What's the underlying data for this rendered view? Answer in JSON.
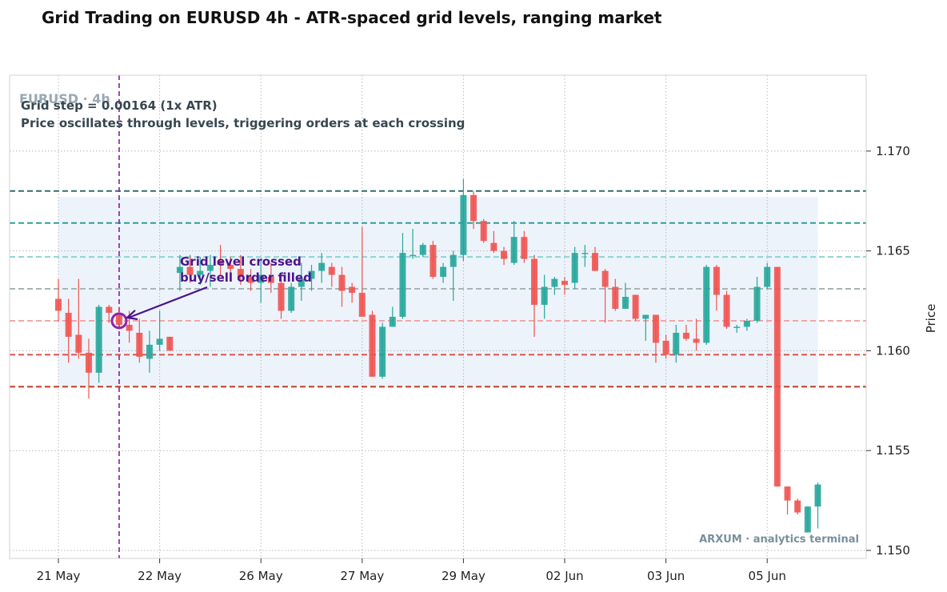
{
  "chart_data": {
    "type": "candlestick",
    "title": "Grid Trading on EURUSD 4h - ATR-spaced grid levels, ranging market",
    "watermark": "EURUSD · 4h",
    "notes": [
      "Grid step = 0.00164 (1x ATR)",
      "Price oscillates through levels, triggering orders at each crossing"
    ],
    "annotation": {
      "line1": "Grid level crossed",
      "line2": "buy/sell order filled",
      "color": "#4a148c"
    },
    "brand": "ARXUM · analytics terminal",
    "ylabel": "Price",
    "ylim": [
      1.1496,
      1.1738
    ],
    "yticks": [
      "1.150",
      "1.155",
      "1.160",
      "1.165",
      "1.170"
    ],
    "ytick_values": [
      1.15,
      1.155,
      1.16,
      1.165,
      1.17
    ],
    "xticks": [
      {
        "index": 0,
        "label": "21 May"
      },
      {
        "index": 10,
        "label": "22 May"
      },
      {
        "index": 20,
        "label": "26 May"
      },
      {
        "index": 30,
        "label": "27 May"
      },
      {
        "index": 40,
        "label": "29 May"
      },
      {
        "index": 50,
        "label": "02 Jun"
      },
      {
        "index": 60,
        "label": "03 Jun"
      },
      {
        "index": 70,
        "label": "05 Jun"
      }
    ],
    "crossing_index": 6,
    "crossing_price": 1.1615,
    "grid_band": [
      1.1582,
      1.1677
    ],
    "grid_levels": [
      {
        "price": 1.168,
        "color": "#2f6f6f"
      },
      {
        "price": 1.1664,
        "color": "#2aa198"
      },
      {
        "price": 1.1647,
        "color": "#8fd3d3"
      },
      {
        "price": 1.1631,
        "color": "#a7b5b5"
      },
      {
        "price": 1.1615,
        "color": "#f2a7a7"
      },
      {
        "price": 1.1598,
        "color": "#d9534f"
      },
      {
        "price": 1.1582,
        "color": "#c0392b"
      }
    ],
    "colors": {
      "up": "#26a69a",
      "down": "#ef5350",
      "crossing": "#8e24aa",
      "band": "#edf3fa",
      "grid": "#b8b8b8"
    },
    "candles": [
      {
        "o": 1.1626,
        "h": 1.1636,
        "l": 1.1615,
        "c": 1.162
      },
      {
        "o": 1.1619,
        "h": 1.1626,
        "l": 1.1594,
        "c": 1.1607
      },
      {
        "o": 1.1608,
        "h": 1.1636,
        "l": 1.1596,
        "c": 1.1599
      },
      {
        "o": 1.1599,
        "h": 1.1606,
        "l": 1.1576,
        "c": 1.1589
      },
      {
        "o": 1.1589,
        "h": 1.1623,
        "l": 1.1584,
        "c": 1.1622
      },
      {
        "o": 1.1622,
        "h": 1.1623,
        "l": 1.1614,
        "c": 1.1619
      },
      {
        "o": 1.1619,
        "h": 1.1622,
        "l": 1.1611,
        "c": 1.1613
      },
      {
        "o": 1.1613,
        "h": 1.162,
        "l": 1.1604,
        "c": 1.161
      },
      {
        "o": 1.1609,
        "h": 1.1616,
        "l": 1.1594,
        "c": 1.1597
      },
      {
        "o": 1.1596,
        "h": 1.161,
        "l": 1.1589,
        "c": 1.1603
      },
      {
        "o": 1.1603,
        "h": 1.162,
        "l": 1.16,
        "c": 1.1606
      },
      {
        "o": 1.1607,
        "h": 1.1607,
        "l": 1.16,
        "c": 1.16
      },
      {
        "o": 1.1639,
        "h": 1.1648,
        "l": 1.163,
        "c": 1.1642
      },
      {
        "o": 1.1642,
        "h": 1.1648,
        "l": 1.1634,
        "c": 1.1638
      },
      {
        "o": 1.1638,
        "h": 1.1647,
        "l": 1.1633,
        "c": 1.164
      },
      {
        "o": 1.164,
        "h": 1.1648,
        "l": 1.1632,
        "c": 1.1643
      },
      {
        "o": 1.1645,
        "h": 1.1653,
        "l": 1.1638,
        "c": 1.1643
      },
      {
        "o": 1.1643,
        "h": 1.1647,
        "l": 1.1636,
        "c": 1.1641
      },
      {
        "o": 1.1641,
        "h": 1.1648,
        "l": 1.1633,
        "c": 1.1637
      },
      {
        "o": 1.1637,
        "h": 1.1641,
        "l": 1.163,
        "c": 1.1634
      },
      {
        "o": 1.1634,
        "h": 1.1645,
        "l": 1.1624,
        "c": 1.1638
      },
      {
        "o": 1.1637,
        "h": 1.1644,
        "l": 1.1629,
        "c": 1.1634
      },
      {
        "o": 1.1634,
        "h": 1.1637,
        "l": 1.1616,
        "c": 1.162
      },
      {
        "o": 1.162,
        "h": 1.1634,
        "l": 1.1619,
        "c": 1.1632
      },
      {
        "o": 1.1632,
        "h": 1.1644,
        "l": 1.1625,
        "c": 1.1636
      },
      {
        "o": 1.1636,
        "h": 1.1643,
        "l": 1.163,
        "c": 1.164
      },
      {
        "o": 1.164,
        "h": 1.1649,
        "l": 1.1634,
        "c": 1.1644
      },
      {
        "o": 1.1642,
        "h": 1.1644,
        "l": 1.1632,
        "c": 1.1638
      },
      {
        "o": 1.1638,
        "h": 1.1642,
        "l": 1.1622,
        "c": 1.163
      },
      {
        "o": 1.1632,
        "h": 1.1634,
        "l": 1.1624,
        "c": 1.1629
      },
      {
        "o": 1.1629,
        "h": 1.1662,
        "l": 1.1618,
        "c": 1.1617
      },
      {
        "o": 1.1618,
        "h": 1.162,
        "l": 1.1587,
        "c": 1.1587
      },
      {
        "o": 1.1587,
        "h": 1.1614,
        "l": 1.1586,
        "c": 1.1612
      },
      {
        "o": 1.1612,
        "h": 1.1622,
        "l": 1.1612,
        "c": 1.1617
      },
      {
        "o": 1.1617,
        "h": 1.1659,
        "l": 1.1616,
        "c": 1.1649
      },
      {
        "o": 1.1648,
        "h": 1.1661,
        "l": 1.1646,
        "c": 1.1648
      },
      {
        "o": 1.1648,
        "h": 1.1654,
        "l": 1.1647,
        "c": 1.1653
      },
      {
        "o": 1.1653,
        "h": 1.1655,
        "l": 1.1636,
        "c": 1.1637
      },
      {
        "o": 1.1637,
        "h": 1.1644,
        "l": 1.1634,
        "c": 1.1642
      },
      {
        "o": 1.1642,
        "h": 1.165,
        "l": 1.1625,
        "c": 1.1648
      },
      {
        "o": 1.1648,
        "h": 1.1686,
        "l": 1.1645,
        "c": 1.1678
      },
      {
        "o": 1.1678,
        "h": 1.168,
        "l": 1.1661,
        "c": 1.1665
      },
      {
        "o": 1.1665,
        "h": 1.1666,
        "l": 1.1654,
        "c": 1.1655
      },
      {
        "o": 1.1654,
        "h": 1.166,
        "l": 1.1649,
        "c": 1.165
      },
      {
        "o": 1.165,
        "h": 1.1652,
        "l": 1.1643,
        "c": 1.1646
      },
      {
        "o": 1.1644,
        "h": 1.1665,
        "l": 1.1643,
        "c": 1.1657
      },
      {
        "o": 1.1657,
        "h": 1.166,
        "l": 1.1644,
        "c": 1.1646
      },
      {
        "o": 1.1646,
        "h": 1.1648,
        "l": 1.1607,
        "c": 1.1623
      },
      {
        "o": 1.1623,
        "h": 1.1638,
        "l": 1.1616,
        "c": 1.1632
      },
      {
        "o": 1.1632,
        "h": 1.1637,
        "l": 1.1628,
        "c": 1.1636
      },
      {
        "o": 1.1635,
        "h": 1.1637,
        "l": 1.1628,
        "c": 1.1633
      },
      {
        "o": 1.1634,
        "h": 1.1652,
        "l": 1.1631,
        "c": 1.1649
      },
      {
        "o": 1.1649,
        "h": 1.1653,
        "l": 1.1642,
        "c": 1.1649
      },
      {
        "o": 1.1649,
        "h": 1.1652,
        "l": 1.164,
        "c": 1.164
      },
      {
        "o": 1.164,
        "h": 1.1641,
        "l": 1.1614,
        "c": 1.1632
      },
      {
        "o": 1.1632,
        "h": 1.1636,
        "l": 1.162,
        "c": 1.1621
      },
      {
        "o": 1.1621,
        "h": 1.1634,
        "l": 1.1621,
        "c": 1.1627
      },
      {
        "o": 1.1628,
        "h": 1.1628,
        "l": 1.1615,
        "c": 1.1616
      },
      {
        "o": 1.1616,
        "h": 1.1618,
        "l": 1.1605,
        "c": 1.1618
      },
      {
        "o": 1.1618,
        "h": 1.1618,
        "l": 1.1594,
        "c": 1.1604
      },
      {
        "o": 1.1605,
        "h": 1.1608,
        "l": 1.1596,
        "c": 1.1598
      },
      {
        "o": 1.1598,
        "h": 1.1613,
        "l": 1.1594,
        "c": 1.1609
      },
      {
        "o": 1.1609,
        "h": 1.1613,
        "l": 1.1605,
        "c": 1.1606
      },
      {
        "o": 1.1606,
        "h": 1.1616,
        "l": 1.16,
        "c": 1.1604
      },
      {
        "o": 1.1604,
        "h": 1.1643,
        "l": 1.1603,
        "c": 1.1642
      },
      {
        "o": 1.1642,
        "h": 1.1643,
        "l": 1.162,
        "c": 1.1628
      },
      {
        "o": 1.1628,
        "h": 1.163,
        "l": 1.1611,
        "c": 1.1612
      },
      {
        "o": 1.1612,
        "h": 1.1613,
        "l": 1.1609,
        "c": 1.1612
      },
      {
        "o": 1.1612,
        "h": 1.1616,
        "l": 1.161,
        "c": 1.1615
      },
      {
        "o": 1.1615,
        "h": 1.1637,
        "l": 1.1614,
        "c": 1.1632
      },
      {
        "o": 1.1632,
        "h": 1.1644,
        "l": 1.1631,
        "c": 1.1642
      },
      {
        "o": 1.1642,
        "h": 1.1642,
        "l": 1.1532,
        "c": 1.1532
      },
      {
        "o": 1.1532,
        "h": 1.1532,
        "l": 1.1518,
        "c": 1.1525
      },
      {
        "o": 1.1525,
        "h": 1.1526,
        "l": 1.1518,
        "c": 1.1519
      },
      {
        "o": 1.1509,
        "h": 1.1522,
        "l": 1.1509,
        "c": 1.1522
      },
      {
        "o": 1.1522,
        "h": 1.1534,
        "l": 1.1511,
        "c": 1.1533
      }
    ]
  }
}
